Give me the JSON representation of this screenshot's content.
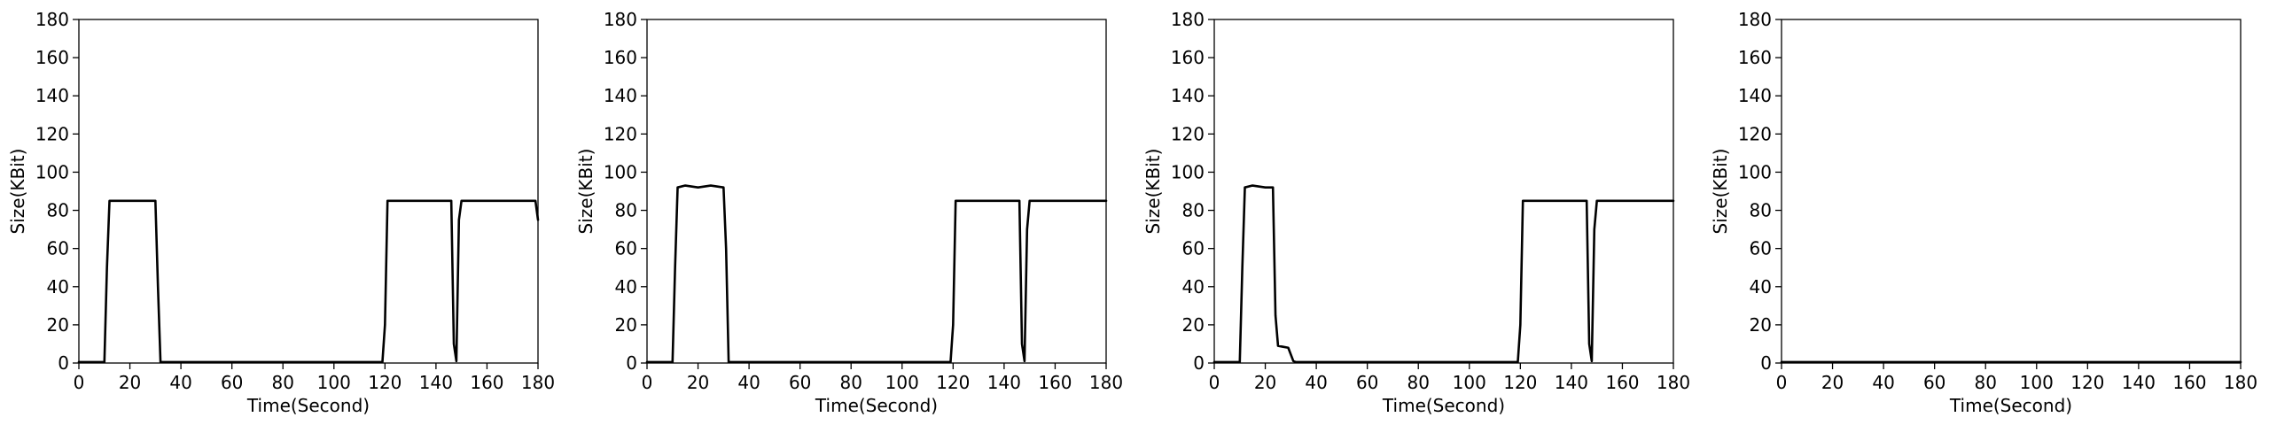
{
  "chart_data": [
    {
      "type": "line",
      "xlabel": "Time(Second)",
      "ylabel": "Size(KBit)",
      "xlim": [
        0,
        180
      ],
      "ylim": [
        0,
        180
      ],
      "xticks": [
        "0",
        "20",
        "40",
        "60",
        "80",
        "100",
        "120",
        "140",
        "160",
        "180"
      ],
      "yticks": [
        "0",
        "20",
        "40",
        "60",
        "80",
        "100",
        "120",
        "140",
        "160",
        "180"
      ],
      "grid": false,
      "series": [
        {
          "color": "#000000",
          "x": [
            0,
            10,
            11,
            12,
            20,
            30,
            31,
            32,
            40,
            60,
            80,
            100,
            119,
            120,
            121,
            122,
            130,
            140,
            146,
            147,
            148,
            149,
            150,
            160,
            170,
            179,
            180
          ],
          "y": [
            0.5,
            0.5,
            50,
            85,
            85,
            85,
            40,
            0.5,
            0.5,
            0.5,
            0.5,
            0.5,
            0.5,
            20,
            85,
            85,
            85,
            85,
            85,
            10,
            1,
            75,
            85,
            85,
            85,
            85,
            75
          ]
        }
      ]
    },
    {
      "type": "line",
      "xlabel": "Time(Second)",
      "ylabel": "Size(KBit)",
      "xlim": [
        0,
        180
      ],
      "ylim": [
        0,
        180
      ],
      "xticks": [
        "0",
        "20",
        "40",
        "60",
        "80",
        "100",
        "120",
        "140",
        "160",
        "180"
      ],
      "yticks": [
        "0",
        "20",
        "40",
        "60",
        "80",
        "100",
        "120",
        "140",
        "160",
        "180"
      ],
      "grid": false,
      "series": [
        {
          "color": "#000000",
          "x": [
            0,
            10,
            11,
            12,
            15,
            20,
            25,
            30,
            31,
            32,
            40,
            60,
            80,
            100,
            119,
            120,
            121,
            122,
            130,
            140,
            146,
            147,
            148,
            149,
            150,
            160,
            170,
            180
          ],
          "y": [
            0.5,
            0.5,
            50,
            92,
            93,
            92,
            93,
            92,
            60,
            0.5,
            0.5,
            0.5,
            0.5,
            0.5,
            0.5,
            20,
            85,
            85,
            85,
            85,
            85,
            10,
            1,
            70,
            85,
            85,
            85,
            85
          ]
        }
      ]
    },
    {
      "type": "line",
      "xlabel": "Time(Second)",
      "ylabel": "Size(KBit)",
      "xlim": [
        0,
        180
      ],
      "ylim": [
        0,
        180
      ],
      "xticks": [
        "0",
        "20",
        "40",
        "60",
        "80",
        "100",
        "120",
        "140",
        "160",
        "180"
      ],
      "yticks": [
        "0",
        "20",
        "40",
        "60",
        "80",
        "100",
        "120",
        "140",
        "160",
        "180"
      ],
      "grid": false,
      "series": [
        {
          "color": "#000000",
          "x": [
            0,
            10,
            11,
            12,
            15,
            20,
            23,
            24,
            25,
            27,
            29,
            31,
            32,
            40,
            60,
            80,
            100,
            119,
            120,
            121,
            122,
            130,
            140,
            146,
            147,
            148,
            149,
            150,
            160,
            170,
            180
          ],
          "y": [
            0.5,
            0.5,
            50,
            92,
            93,
            92,
            92,
            25,
            9,
            8.5,
            8,
            1,
            0.5,
            0.5,
            0.5,
            0.5,
            0.5,
            0.5,
            20,
            85,
            85,
            85,
            85,
            85,
            10,
            1,
            70,
            85,
            85,
            85,
            85
          ]
        }
      ]
    },
    {
      "type": "line",
      "xlabel": "Time(Second)",
      "ylabel": "Size(KBit)",
      "xlim": [
        0,
        180
      ],
      "ylim": [
        0,
        180
      ],
      "xticks": [
        "0",
        "20",
        "40",
        "60",
        "80",
        "100",
        "120",
        "140",
        "160",
        "180"
      ],
      "yticks": [
        "0",
        "20",
        "40",
        "60",
        "80",
        "100",
        "120",
        "140",
        "160",
        "180"
      ],
      "grid": false,
      "series": [
        {
          "color": "#000000",
          "x": [
            0,
            20,
            40,
            60,
            80,
            100,
            120,
            140,
            160,
            180
          ],
          "y": [
            0.5,
            0.5,
            0.5,
            0.5,
            0.5,
            0.5,
            0.5,
            0.5,
            0.5,
            0.5
          ]
        }
      ]
    }
  ]
}
